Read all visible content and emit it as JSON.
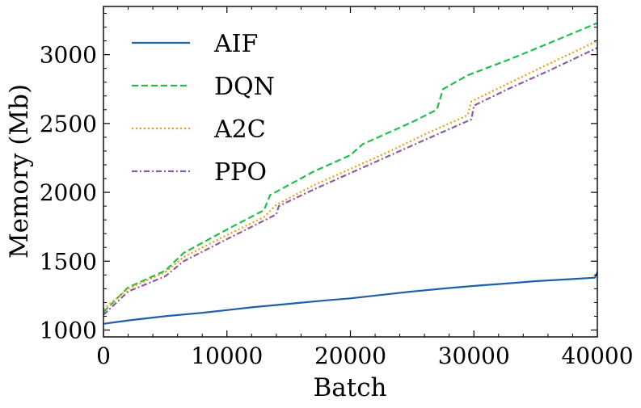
{
  "chart_data": {
    "type": "line",
    "title": "",
    "xlabel": "Batch",
    "ylabel": "Memory (Mb)",
    "xlim": [
      0,
      40000
    ],
    "ylim": [
      950,
      3350
    ],
    "xticks": [
      0,
      10000,
      20000,
      30000,
      40000
    ],
    "yticks": [
      1000,
      1500,
      2000,
      2500,
      3000
    ],
    "xtick_labels": [
      "0",
      "10000",
      "20000",
      "30000",
      "40000"
    ],
    "ytick_labels": [
      "1000",
      "1500",
      "2000",
      "2500",
      "3000"
    ],
    "grid": false,
    "legend_position": "top-left",
    "series": [
      {
        "name": "AIF",
        "color": "#1f5fa8",
        "style": "solid",
        "x": [
          0,
          2000,
          5000,
          8000,
          10000,
          12000,
          15000,
          18000,
          20000,
          23000,
          25000,
          28000,
          30000,
          33000,
          35000,
          38000,
          39800,
          40000
        ],
        "y": [
          1045,
          1070,
          1100,
          1125,
          1145,
          1165,
          1190,
          1215,
          1230,
          1260,
          1280,
          1305,
          1320,
          1340,
          1355,
          1370,
          1380,
          1420
        ]
      },
      {
        "name": "DQN",
        "color": "#1fbf4a",
        "style": "dashed",
        "x": [
          0,
          2000,
          5000,
          6500,
          10000,
          13000,
          13500,
          17000,
          20000,
          21000,
          23000,
          25000,
          27000,
          27500,
          29500,
          33000,
          36000,
          40000
        ],
        "y": [
          1130,
          1310,
          1430,
          1560,
          1730,
          1870,
          1980,
          2150,
          2270,
          2350,
          2430,
          2510,
          2600,
          2750,
          2850,
          2970,
          3080,
          3230
        ]
      },
      {
        "name": "A2C",
        "color": "#f29b0c",
        "style": "dotted",
        "x": [
          0,
          2000,
          5000,
          6500,
          10000,
          13000,
          14000,
          17000,
          20000,
          23000,
          26000,
          29500,
          29800,
          33000,
          36000,
          40000
        ],
        "y": [
          1150,
          1300,
          1420,
          1530,
          1690,
          1820,
          1910,
          2050,
          2170,
          2290,
          2420,
          2560,
          2660,
          2800,
          2930,
          3100
        ]
      },
      {
        "name": "PPO",
        "color": "#8a5ca0",
        "style": "dashdot",
        "x": [
          0,
          2000,
          5000,
          6500,
          10000,
          14000,
          14200,
          17000,
          20000,
          23000,
          26000,
          29800,
          30000,
          33000,
          36000,
          40000
        ],
        "y": [
          1110,
          1280,
          1390,
          1500,
          1660,
          1840,
          1900,
          2020,
          2140,
          2260,
          2380,
          2530,
          2630,
          2760,
          2880,
          3050
        ]
      }
    ]
  }
}
